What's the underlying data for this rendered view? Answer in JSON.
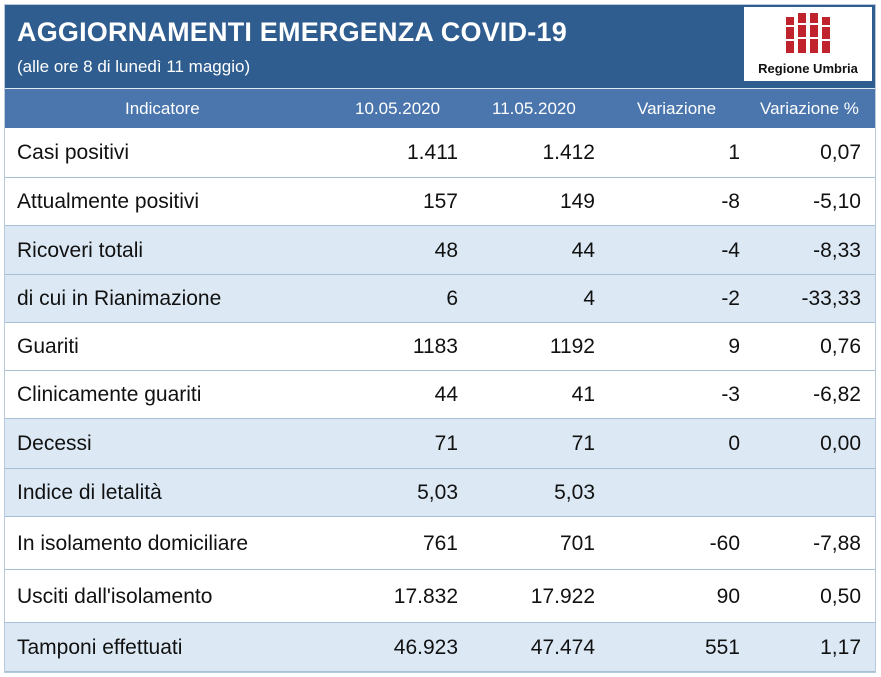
{
  "header": {
    "title": "AGGIORNAMENTI EMERGENZA COVID-19",
    "subtitle": "(alle ore 8 di lunedì 11 maggio)",
    "logo_text": "Regione Umbria"
  },
  "colors": {
    "banner": "#2f5d8f",
    "header_row": "#4a76ad",
    "alt_row": "#dce9f5",
    "logo_red": "#c0232c"
  },
  "table": {
    "columns": [
      "Indicatore",
      "10.05.2020",
      "11.05.2020",
      "Variazione",
      "Variazione %"
    ],
    "rows": [
      {
        "label": "Casi positivi",
        "d1": "1.411",
        "d2": "1.412",
        "var": "1",
        "pct": "0,07",
        "alt": false
      },
      {
        "label": "Attualmente positivi",
        "d1": "157",
        "d2": "149",
        "var": "-8",
        "pct": "-5,10",
        "alt": false
      },
      {
        "label": "Ricoveri totali",
        "d1": "48",
        "d2": "44",
        "var": "-4",
        "pct": "-8,33",
        "alt": true
      },
      {
        "label": "di cui in Rianimazione",
        "d1": "6",
        "d2": "4",
        "var": "-2",
        "pct": "-33,33",
        "alt": true
      },
      {
        "label": "Guariti",
        "d1": "1183",
        "d2": "1192",
        "var": "9",
        "pct": "0,76",
        "alt": false
      },
      {
        "label": "Clinicamente guariti",
        "d1": "44",
        "d2": "41",
        "var": "-3",
        "pct": "-6,82",
        "alt": false
      },
      {
        "label": "Decessi",
        "d1": "71",
        "d2": "71",
        "var": "0",
        "pct": "0,00",
        "alt": true
      },
      {
        "label": "Indice di letalità",
        "d1": "5,03",
        "d2": "5,03",
        "var": "",
        "pct": "",
        "alt": true
      },
      {
        "label": "In isolamento domiciliare",
        "d1": "761",
        "d2": "701",
        "var": "-60",
        "pct": "-7,88",
        "alt": false
      },
      {
        "label": "Usciti dall'isolamento",
        "d1": "17.832",
        "d2": "17.922",
        "var": "90",
        "pct": "0,50",
        "alt": false
      },
      {
        "label": "Tamponi effettuati",
        "d1": "46.923",
        "d2": "47.474",
        "var": "551",
        "pct": "1,17",
        "alt": true
      }
    ]
  }
}
